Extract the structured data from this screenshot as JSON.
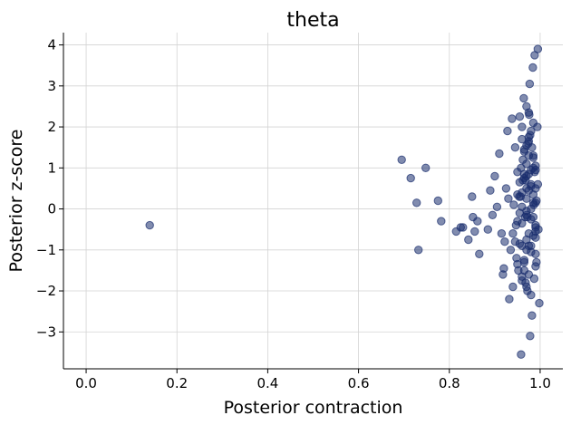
{
  "chart_data": {
    "type": "scatter",
    "title": "theta",
    "xlabel": "Posterior contraction",
    "ylabel": "Posterior z-score",
    "xlim": [
      -0.05,
      1.05
    ],
    "ylim": [
      -3.9,
      4.3
    ],
    "xticks": [
      0.0,
      0.2,
      0.4,
      0.6,
      0.8,
      1.0
    ],
    "xtick_labels": [
      "0.0",
      "0.2",
      "0.4",
      "0.6",
      "0.8",
      "1.0"
    ],
    "yticks": [
      -3,
      -2,
      -1,
      0,
      1,
      2,
      3,
      4
    ],
    "ytick_labels": [
      "−3",
      "−2",
      "−1",
      "0",
      "1",
      "2",
      "3",
      "4"
    ],
    "grid": true,
    "marker_color": "#1a2e6e",
    "marker_alpha": 0.55,
    "series": [
      {
        "x": [
          0.14,
          0.695,
          0.715,
          0.728,
          0.732,
          0.748,
          0.775,
          0.782,
          0.815,
          0.825,
          0.83,
          0.842,
          0.85,
          0.852,
          0.856,
          0.862,
          0.866,
          0.885,
          0.89,
          0.895,
          0.9,
          0.905,
          0.91,
          0.915,
          0.918,
          0.92,
          0.922,
          0.925,
          0.928,
          0.932,
          0.935,
          0.938,
          0.94,
          0.942,
          0.945,
          0.947,
          0.95,
          0.952,
          0.955,
          0.957,
          0.958,
          0.96,
          0.962,
          0.964,
          0.965,
          0.967,
          0.968,
          0.97,
          0.972,
          0.974,
          0.975,
          0.977,
          0.978,
          0.98,
          0.982,
          0.984,
          0.985,
          0.987,
          0.988,
          0.99,
          0.992,
          0.994,
          0.995,
          0.998,
          0.94,
          0.96,
          0.975,
          0.985,
          0.99,
          0.97,
          0.95,
          0.98,
          0.965,
          0.992,
          0.958,
          0.972,
          0.988,
          0.945,
          0.962,
          0.978,
          0.996,
          0.982,
          0.968,
          0.954,
          0.99,
          0.976,
          0.948,
          0.986,
          0.97,
          0.93,
          0.96,
          0.98,
          0.97,
          0.99,
          0.985,
          0.975,
          0.965,
          0.955,
          0.995,
          0.98,
          0.96,
          0.97,
          0.99,
          0.975,
          0.985,
          0.965,
          0.95,
          0.98,
          0.97,
          0.96,
          0.99,
          0.975,
          0.985,
          0.97,
          0.955,
          0.965,
          0.98,
          0.99,
          0.975,
          0.96,
          0.97,
          0.985,
          0.95,
          0.98,
          0.965,
          0.99,
          0.975,
          0.96,
          0.97,
          0.985,
          0.98,
          0.99,
          0.975,
          0.965,
          0.955,
          0.97,
          0.98,
          0.96,
          0.99,
          0.985,
          0.975,
          0.97
        ],
        "y": [
          -0.4,
          1.2,
          0.75,
          0.15,
          -1.0,
          1.0,
          0.2,
          -0.3,
          -0.55,
          -0.45,
          -0.45,
          -0.75,
          0.3,
          -0.2,
          -0.55,
          -0.3,
          -1.1,
          -0.5,
          0.45,
          -0.15,
          0.8,
          0.05,
          1.35,
          -0.6,
          -1.6,
          -1.45,
          -0.8,
          0.5,
          1.9,
          -2.2,
          -1.0,
          2.2,
          -1.9,
          0.1,
          1.5,
          -0.4,
          0.9,
          -1.5,
          2.25,
          0.3,
          -3.55,
          -0.9,
          1.2,
          2.7,
          -1.3,
          -0.2,
          0.7,
          2.5,
          -2.0,
          1.6,
          -0.6,
          3.05,
          -3.1,
          0.0,
          -2.6,
          3.45,
          1.0,
          -1.7,
          3.75,
          0.5,
          -1.3,
          2.0,
          3.9,
          -2.3,
          -0.6,
          0.4,
          -0.9,
          1.3,
          -1.1,
          0.8,
          -0.3,
          0.6,
          -1.5,
          0.2,
          1.0,
          -0.2,
          0.9,
          -0.8,
          0.7,
          1.8,
          -0.5,
          1.5,
          -1.8,
          0.3,
          -0.7,
          2.3,
          -1.2,
          0.1,
          -1.9,
          0.25,
          1.7,
          -2.1,
          1.1,
          -0.4,
          2.1,
          -1.6,
          1.4,
          -0.1,
          0.6,
          -0.9,
          2.0,
          0.5,
          -1.4,
          1.3,
          -0.2,
          0.85,
          0.35,
          1.9,
          -1.0,
          -0.35,
          0.15,
          0.45,
          -0.65,
          1.55,
          0.65,
          -1.25,
          0.95,
          -0.55,
          2.35,
          0.05,
          -0.75,
          1.25,
          -1.35,
          0.55,
          0.75,
          -0.45,
          1.65,
          -1.65,
          -0.05,
          0.35,
          -1.05,
          1.05,
          0.85,
          1.45,
          -0.85,
          0.25,
          -0.25,
          -1.75,
          0.95,
          0.15,
          1.75,
          -0.15
        ]
      }
    ]
  }
}
